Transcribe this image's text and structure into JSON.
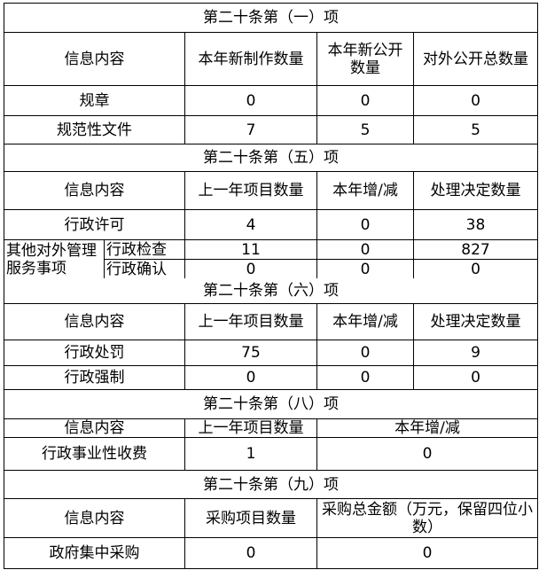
{
  "sections": [
    {
      "title": "第二十条第（一）项",
      "header": [
        "信息内容",
        "本年新制作数量",
        "本年新公开数量",
        "对外公开总数量"
      ],
      "rows": [
        [
          "规章",
          "0",
          "0",
          "0"
        ],
        [
          "规范性文件",
          "7",
          "5",
          "5"
        ]
      ]
    },
    {
      "title": "第二十条第（五）项",
      "header": [
        "信息内容",
        "上一年项目数量",
        "本年增/减",
        "处理决定数量"
      ],
      "rows": [
        [
          "行政许可",
          "4",
          "0",
          "38"
        ]
      ],
      "group_label": "其他对外管理服务事项",
      "group_rows": [
        [
          "行政检查",
          "11",
          "0",
          "827"
        ],
        [
          "行政确认",
          "0",
          "0",
          "0"
        ]
      ]
    },
    {
      "title": "第二十条第（六）项",
      "header": [
        "信息内容",
        "上一年项目数量",
        "本年增/减",
        "处理决定数量"
      ],
      "rows": [
        [
          "行政处罚",
          "75",
          "0",
          "9"
        ],
        [
          "行政强制",
          "0",
          "0",
          "0"
        ]
      ]
    },
    {
      "title": "第二十条第（八）项",
      "header": [
        "信息内容",
        "上一年项目数量",
        "本年增/减"
      ],
      "rows": [
        [
          "行政事业性收费",
          "1",
          "0"
        ]
      ]
    },
    {
      "title": "第二十条第（九）项",
      "header": [
        "信息内容",
        "采购项目数量",
        "采购总金额（万元，保留四位小数）"
      ],
      "rows": [
        [
          "政府集中采购",
          "0",
          "0"
        ]
      ]
    }
  ]
}
